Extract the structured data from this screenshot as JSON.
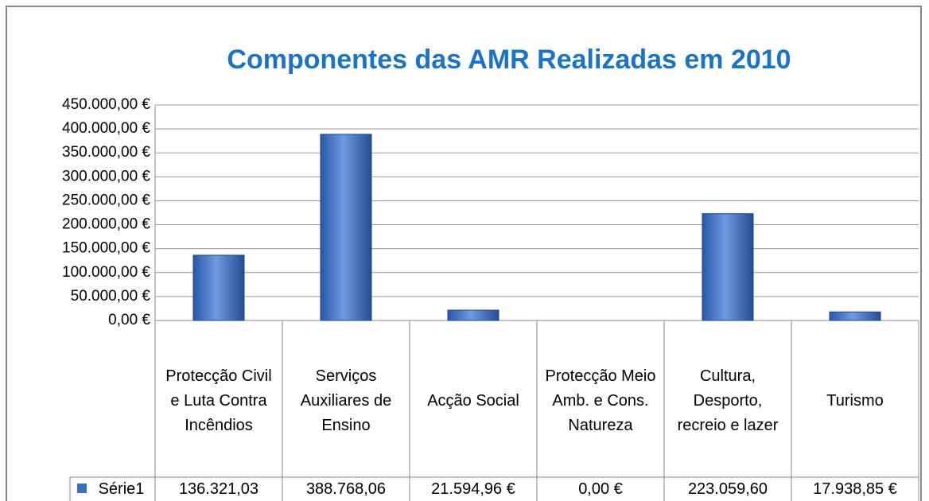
{
  "chart_data": {
    "type": "bar",
    "title": "Componentes das AMR Realizadas em 2010",
    "categories": [
      "Protecção Civil e Luta Contra Incêndios",
      "Serviços Auxiliares de Ensino",
      "Acção Social",
      "Protecção Meio Amb. e Cons. Natureza",
      "Cultura, Desporto, recreio e lazer",
      "Turismo"
    ],
    "series": [
      {
        "name": "Série1",
        "color": "#3a6fc4",
        "values": [
          136321.03,
          388768.06,
          21594.96,
          0,
          223059.6,
          17938.85
        ],
        "value_labels": [
          "136.321,03",
          "388.768,06",
          "21.594,96 €",
          "0,00 €",
          "223.059,60",
          "17.938,85 €"
        ]
      }
    ],
    "ylim": [
      0,
      450000
    ],
    "yticks": [
      {
        "value": 0,
        "label": "0,00 €"
      },
      {
        "value": 50000,
        "label": "50.000,00 €"
      },
      {
        "value": 100000,
        "label": "100.000,00 €"
      },
      {
        "value": 150000,
        "label": "150.000,00 €"
      },
      {
        "value": 200000,
        "label": "200.000,00 €"
      },
      {
        "value": 250000,
        "label": "250.000,00 €"
      },
      {
        "value": 300000,
        "label": "300.000,00 €"
      },
      {
        "value": 350000,
        "label": "350.000,00 €"
      },
      {
        "value": 400000,
        "label": "400.000,00 €"
      },
      {
        "value": 450000,
        "label": "450.000,00 €"
      }
    ],
    "grid": true
  }
}
